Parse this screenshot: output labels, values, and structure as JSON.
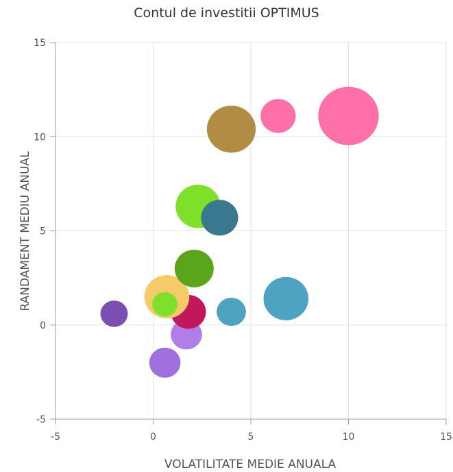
{
  "chart_data": {
    "type": "scatter",
    "title": "Contul de investitii OPTIMUS",
    "xlabel": "VOLATILITATE MEDIE ANUALA",
    "ylabel": "RANDAMENT MEDIU ANUAL",
    "xlim": [
      -5,
      15
    ],
    "ylim": [
      -5,
      15
    ],
    "xticks": [
      "-5",
      "0",
      "5",
      "10",
      "15"
    ],
    "yticks": [
      "-5",
      "0",
      "5",
      "10",
      "15"
    ],
    "grid": true,
    "points": [
      {
        "x": -2.0,
        "y": 0.6,
        "r": 0.7,
        "color": "#7b4fb0"
      },
      {
        "x": 0.6,
        "y": -2.0,
        "r": 0.8,
        "color": "#a070e0"
      },
      {
        "x": 1.7,
        "y": -0.5,
        "r": 0.8,
        "color": "#b07ee8"
      },
      {
        "x": 1.8,
        "y": 0.7,
        "r": 0.9,
        "color": "#c0185a"
      },
      {
        "x": 0.7,
        "y": 1.5,
        "r": 1.15,
        "color": "#f5cb6a"
      },
      {
        "x": 0.6,
        "y": 1.1,
        "r": 0.65,
        "color": "#7fe02a"
      },
      {
        "x": 2.1,
        "y": 3.0,
        "r": 1.0,
        "color": "#5aa51c"
      },
      {
        "x": 2.3,
        "y": 6.3,
        "r": 1.15,
        "color": "#7fe02a"
      },
      {
        "x": 3.4,
        "y": 5.7,
        "r": 0.95,
        "color": "#3a7890"
      },
      {
        "x": 4.0,
        "y": 0.7,
        "r": 0.75,
        "color": "#4ea3c3"
      },
      {
        "x": 6.8,
        "y": 1.4,
        "r": 1.15,
        "color": "#4ea3c3"
      },
      {
        "x": 4.0,
        "y": 10.4,
        "r": 1.25,
        "color": "#b08c44"
      },
      {
        "x": 6.4,
        "y": 11.1,
        "r": 0.9,
        "color": "#ff6fa8"
      },
      {
        "x": 10.0,
        "y": 11.1,
        "r": 1.55,
        "color": "#ff6fa8"
      }
    ]
  }
}
